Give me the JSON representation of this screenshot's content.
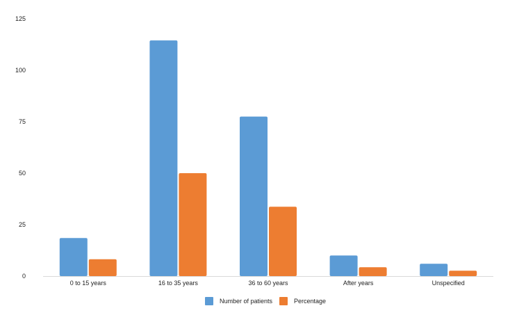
{
  "chart_data": {
    "type": "bar",
    "categories": [
      "0 to 15 years",
      "16 to 35 years",
      "36 to 60 years",
      "After years",
      "Unspecified"
    ],
    "series": [
      {
        "name": "Number of patients",
        "values": [
          18.5,
          114.5,
          77.5,
          10,
          6
        ],
        "color": "#5B9BD5"
      },
      {
        "name": "Percentage",
        "values": [
          8.2,
          50,
          33.7,
          4.3,
          2.6
        ],
        "color": "#ED7D31"
      }
    ],
    "y_ticks": [
      "0",
      "25",
      "50",
      "75",
      "100",
      "125"
    ],
    "ylim": [
      0,
      125
    ],
    "grid": false,
    "legend_position": "bottom-center",
    "title": "",
    "xlabel": "",
    "ylabel": ""
  }
}
